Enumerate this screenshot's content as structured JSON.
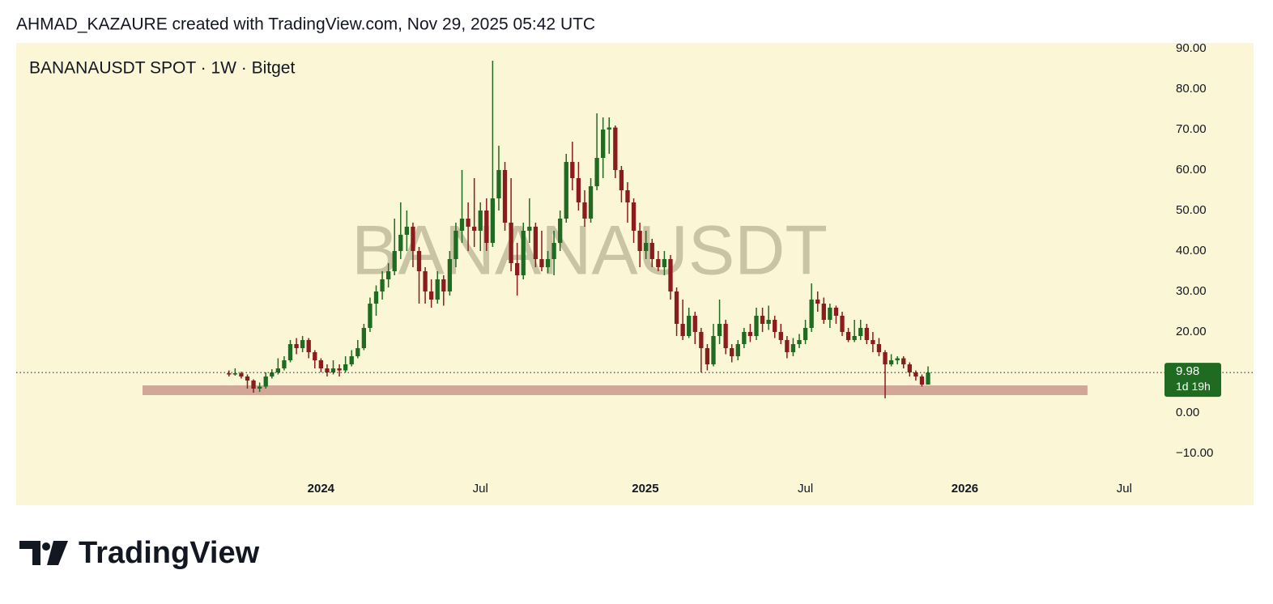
{
  "header": {
    "credit": "AHMAD_KAZAURE created with TradingView.com, Nov 29, 2025 05:42 UTC"
  },
  "chart_data": {
    "type": "candlestick",
    "title": "BANANAUSDT SPOT · 1W · Bitget",
    "watermark": "BANANAUSDT",
    "up_color": "#1f6b22",
    "down_color": "#8c1c1c",
    "open": [
      9.8,
      9.5,
      9.8,
      9.0,
      8.0,
      6.0,
      6.5,
      9.0,
      10.0,
      11.0,
      13.0,
      17.0,
      16.0,
      18.0,
      15.0,
      13.0,
      11.0,
      10.0,
      11.0,
      10.5,
      12.0,
      14.0,
      16.0,
      21.0,
      27.0,
      30.0,
      33.0,
      35.0,
      40.0,
      44.0,
      46.0,
      40.0,
      35.0,
      30.0,
      28.0,
      33.0,
      30.0,
      38.0,
      45.0,
      48.0,
      46.0,
      45.0,
      50.0,
      42.0,
      53.0,
      60.0,
      47.0,
      37.0,
      34.0,
      45.0,
      46.0,
      38.0,
      36.0,
      38.0,
      42.0,
      48.0,
      62.0,
      58.0,
      52.0,
      48.0,
      56.0,
      63.0,
      70.0,
      70.5,
      60.0,
      55.0,
      52.0,
      45.0,
      40.0,
      42.0,
      38.0,
      36.0,
      38.0,
      30.0,
      22.0,
      19.0,
      24.0,
      20.0,
      16.0,
      12.0,
      19.0,
      22.0,
      16.0,
      14.0,
      17.0,
      20.0,
      19.0,
      24.0,
      22.0,
      23.0,
      20.0,
      18.0,
      15.0,
      17.0,
      18.0,
      21.0,
      28.0,
      27.0,
      23.0,
      26.0,
      24.0,
      20.0,
      18.0,
      19.0,
      21.0,
      18.0,
      17.0,
      15.0,
      12.0,
      13.0,
      13.5,
      12.0,
      10.0,
      9.0,
      7.0
    ],
    "high": [
      10.5,
      11.0,
      10.2,
      9.5,
      8.3,
      7.5,
      10.0,
      10.8,
      13.5,
      14.0,
      18.0,
      18.5,
      19.0,
      18.5,
      15.5,
      13.5,
      12.0,
      13.0,
      12.0,
      14.0,
      15.5,
      18.0,
      22.0,
      28.5,
      31.5,
      35.0,
      37.0,
      48.0,
      52.0,
      50.0,
      47.0,
      41.0,
      36.0,
      33.0,
      35.0,
      34.0,
      40.0,
      47.0,
      60.0,
      52.0,
      58.0,
      52.0,
      53.0,
      87.0,
      66.0,
      62.0,
      58.0,
      42.0,
      47.0,
      53.0,
      47.0,
      45.0,
      40.0,
      45.0,
      50.0,
      64.0,
      67.0,
      62.0,
      55.0,
      58.0,
      74.0,
      73.0,
      73.0,
      71.0,
      61.0,
      57.0,
      53.0,
      47.0,
      45.0,
      43.0,
      40.0,
      40.0,
      39.0,
      31.0,
      28.0,
      26.0,
      25.0,
      21.0,
      17.0,
      22.0,
      28.0,
      23.0,
      17.0,
      18.0,
      21.0,
      22.0,
      26.0,
      26.0,
      26.5,
      24.0,
      22.0,
      19.0,
      18.5,
      19.5,
      23.0,
      32.0,
      30.0,
      28.5,
      27.0,
      26.5,
      25.0,
      21.0,
      23.0,
      23.0,
      22.0,
      20.0,
      18.5,
      15.5,
      14.5,
      14.0,
      14.0,
      12.5,
      10.5,
      9.5,
      11.5
    ],
    "low": [
      9.0,
      9.2,
      8.5,
      6.0,
      5.0,
      5.2,
      6.0,
      8.5,
      9.5,
      10.5,
      12.5,
      14.5,
      15.0,
      13.5,
      11.0,
      10.0,
      9.0,
      9.5,
      9.0,
      10.0,
      11.5,
      13.5,
      15.5,
      20.0,
      24.0,
      28.0,
      31.0,
      34.0,
      38.0,
      40.0,
      36.0,
      27.0,
      27.0,
      26.0,
      27.0,
      26.5,
      29.0,
      36.0,
      42.0,
      40.0,
      41.0,
      40.0,
      40.0,
      41.0,
      50.0,
      45.0,
      35.0,
      29.0,
      33.0,
      42.0,
      36.0,
      35.0,
      34.5,
      34.0,
      40.0,
      47.0,
      55.0,
      50.0,
      46.0,
      47.0,
      55.0,
      58.0,
      64.0,
      58.0,
      52.0,
      47.0,
      42.0,
      36.0,
      38.0,
      36.0,
      35.0,
      34.0,
      28.0,
      19.0,
      18.0,
      18.5,
      17.0,
      10.0,
      10.5,
      11.5,
      17.0,
      14.5,
      12.5,
      13.0,
      16.0,
      17.5,
      18.0,
      20.0,
      20.5,
      18.5,
      17.0,
      13.5,
      14.0,
      16.0,
      17.0,
      20.0,
      25.0,
      22.0,
      21.0,
      22.0,
      19.0,
      17.5,
      17.5,
      18.0,
      17.0,
      15.0,
      14.0,
      3.6,
      11.5,
      12.0,
      11.0,
      9.0,
      8.0,
      6.5,
      7.0
    ],
    "close": [
      9.5,
      9.8,
      9.0,
      8.0,
      6.0,
      6.5,
      9.0,
      10.0,
      11.0,
      13.0,
      17.0,
      16.0,
      18.0,
      15.0,
      13.0,
      11.0,
      10.0,
      11.0,
      10.5,
      12.0,
      14.0,
      16.0,
      21.0,
      27.0,
      30.0,
      33.0,
      35.0,
      40.0,
      44.0,
      46.0,
      40.0,
      35.0,
      30.0,
      28.0,
      33.0,
      30.0,
      38.0,
      45.0,
      48.0,
      46.0,
      45.0,
      50.0,
      42.0,
      53.0,
      60.0,
      47.0,
      37.0,
      34.0,
      45.0,
      46.0,
      38.0,
      36.0,
      38.0,
      42.0,
      48.0,
      62.0,
      58.0,
      52.0,
      48.0,
      56.0,
      63.0,
      70.0,
      70.5,
      60.0,
      55.0,
      52.0,
      45.0,
      40.0,
      42.0,
      38.0,
      36.0,
      38.0,
      30.0,
      22.0,
      19.0,
      24.0,
      20.0,
      16.0,
      12.0,
      19.0,
      22.0,
      16.0,
      14.0,
      17.0,
      20.0,
      19.0,
      24.0,
      22.0,
      23.0,
      20.0,
      18.0,
      15.0,
      17.0,
      18.0,
      21.0,
      28.0,
      27.0,
      23.0,
      26.0,
      24.0,
      20.0,
      18.0,
      19.0,
      21.0,
      18.0,
      17.0,
      15.0,
      12.0,
      13.0,
      13.5,
      12.0,
      10.0,
      9.0,
      7.0,
      9.98
    ],
    "xlim": [
      -34.7,
      151.5
    ],
    "xticks": [
      {
        "value": 15,
        "label": "2024"
      },
      {
        "value": 41,
        "label": "Jul"
      },
      {
        "value": 67.9,
        "label": "2025"
      },
      {
        "value": 94,
        "label": "Jul"
      },
      {
        "value": 120,
        "label": "2026"
      },
      {
        "value": 146,
        "label": "Jul"
      }
    ],
    "ylim": [
      -15,
      91.4
    ],
    "yticks": [
      {
        "value": 90,
        "label": "90.00"
      },
      {
        "value": 80,
        "label": "80.00"
      },
      {
        "value": 70,
        "label": "70.00"
      },
      {
        "value": 60,
        "label": "60.00"
      },
      {
        "value": 50,
        "label": "50.00"
      },
      {
        "value": 40,
        "label": "40.00"
      },
      {
        "value": 30,
        "label": "30.00"
      },
      {
        "value": 20,
        "label": "20.00"
      },
      {
        "value": 0,
        "label": "0.00"
      },
      {
        "value": -10,
        "label": "−10.00"
      }
    ],
    "countdown": "1d 19h",
    "zone": {
      "low": 4.4,
      "high": 6.8,
      "start": -14.1,
      "end": 140,
      "color": "#c99a8c"
    }
  },
  "footer": {
    "brand": "TradingView"
  }
}
